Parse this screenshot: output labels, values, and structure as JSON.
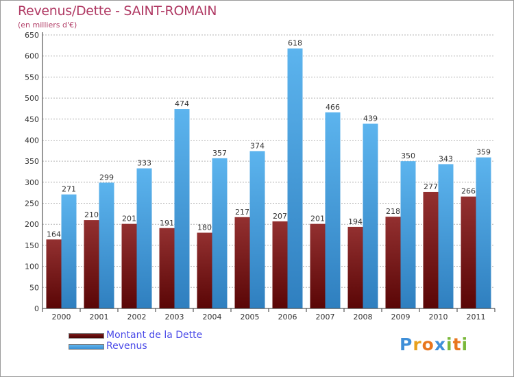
{
  "header": {
    "title": "Revenus/Dette - SAINT-ROMAIN",
    "subtitle": "(en milliers d'€)"
  },
  "colors": {
    "debt": "#7a1a1a",
    "revenue": "#4ea6e6",
    "title": "#b03a64",
    "legend_text": "#4a4ae8"
  },
  "logo": {
    "text": "Proxiti",
    "letters": [
      {
        "ch": "P",
        "color": "#3f8fd8"
      },
      {
        "ch": "r",
        "color": "#e8a11e"
      },
      {
        "ch": "o",
        "color": "#e8761e"
      },
      {
        "ch": "x",
        "color": "#3f8fd8"
      },
      {
        "ch": "i",
        "color": "#7ab83a"
      },
      {
        "ch": "t",
        "color": "#e8761e"
      },
      {
        "ch": "i",
        "color": "#7ab83a"
      }
    ]
  },
  "chart_data": {
    "type": "bar",
    "title": "Revenus/Dette - SAINT-ROMAIN",
    "subtitle": "(en milliers d'€)",
    "categories": [
      "2000",
      "2001",
      "2002",
      "2003",
      "2004",
      "2005",
      "2006",
      "2007",
      "2008",
      "2009",
      "2010",
      "2011"
    ],
    "series": [
      {
        "name": "Montant de la Dette",
        "values": [
          164,
          210,
          201,
          191,
          180,
          217,
          207,
          201,
          194,
          218,
          277,
          266
        ]
      },
      {
        "name": "Revenus",
        "values": [
          271,
          299,
          333,
          474,
          357,
          374,
          618,
          466,
          439,
          350,
          343,
          359
        ]
      }
    ],
    "ylim": [
      0,
      650
    ],
    "yticks": [
      0,
      50,
      100,
      150,
      200,
      250,
      300,
      350,
      400,
      450,
      500,
      550,
      600,
      650
    ],
    "grid": true,
    "legend_position": "bottom-left"
  }
}
